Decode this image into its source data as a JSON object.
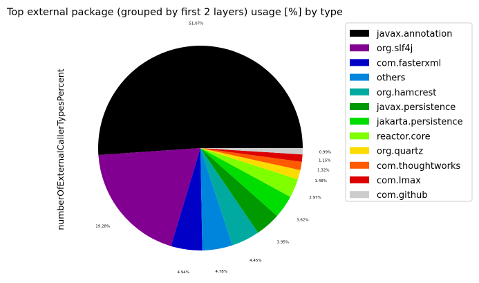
{
  "chart_data": {
    "type": "pie",
    "title": "Top external package (grouped by first 2 layers) usage [%] by type",
    "ylabel": "numberOfExternalCallerTypesPercent",
    "legend_position": "upper-right outside",
    "slices": [
      {
        "label": "javax.annotation",
        "value": 51.07,
        "value_label": "51.07%",
        "color": "#000000"
      },
      {
        "label": "org.slf4j",
        "value": 19.28,
        "value_label": "19.28%",
        "color": "#820091"
      },
      {
        "label": "com.fasterxml",
        "value": 4.94,
        "value_label": "4.94%",
        "color": "#0000c6"
      },
      {
        "label": "others",
        "value": 4.78,
        "value_label": "4.78%",
        "color": "#0085dd"
      },
      {
        "label": "org.hamcrest",
        "value": 4.45,
        "value_label": "4.45%",
        "color": "#00aaa0"
      },
      {
        "label": "javax.persistence",
        "value": 3.95,
        "value_label": "3.95%",
        "color": "#009900"
      },
      {
        "label": "jakarta.persistence",
        "value": 3.62,
        "value_label": "3.62%",
        "color": "#00dd00"
      },
      {
        "label": "reactor.core",
        "value": 2.97,
        "value_label": "2.97%",
        "color": "#80ff00"
      },
      {
        "label": "org.quartz",
        "value": 1.48,
        "value_label": "1.48%",
        "color": "#fcdc00"
      },
      {
        "label": "com.thoughtworks",
        "value": 1.32,
        "value_label": "1.32%",
        "color": "#ff5a00"
      },
      {
        "label": "com.lmax",
        "value": 1.15,
        "value_label": "1.15%",
        "color": "#dd0000"
      },
      {
        "label": "com.github",
        "value": 0.99,
        "value_label": "0.99%",
        "color": "#cccccc"
      }
    ]
  }
}
